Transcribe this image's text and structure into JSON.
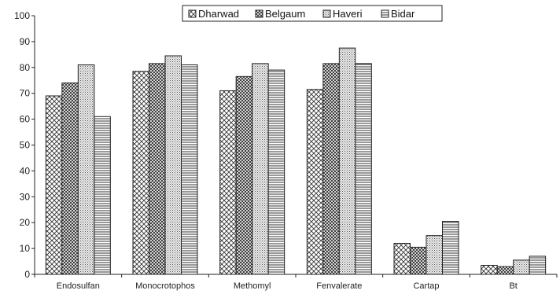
{
  "chart_data": {
    "type": "bar",
    "categories": [
      "Endosulfan",
      "Monocrotophos",
      "Methomyl",
      "Fenvalerate",
      "Cartap",
      "Bt"
    ],
    "series": [
      {
        "name": "Dharwad",
        "values": [
          69,
          78.5,
          71,
          71.5,
          12,
          3.5
        ],
        "pattern": "crosshatch"
      },
      {
        "name": "Belgaum",
        "values": [
          74,
          81.5,
          76.5,
          81.5,
          10.5,
          3
        ],
        "pattern": "dense-crosshatch"
      },
      {
        "name": "Haveri",
        "values": [
          81,
          84.5,
          81.5,
          87.5,
          15,
          5.5
        ],
        "pattern": "fine-dots"
      },
      {
        "name": "Bidar",
        "values": [
          61,
          81,
          79,
          81.5,
          20.5,
          7
        ],
        "pattern": "horizontal-lines"
      }
    ],
    "ylim": [
      0,
      100
    ],
    "yticks": [
      0,
      10,
      20,
      30,
      40,
      50,
      60,
      70,
      80,
      90,
      100
    ],
    "grid": false,
    "legend_placement": "top-center",
    "colors": {
      "bar_stroke": "#222222",
      "pattern_ink": "#333333",
      "background": "#ffffff"
    }
  }
}
